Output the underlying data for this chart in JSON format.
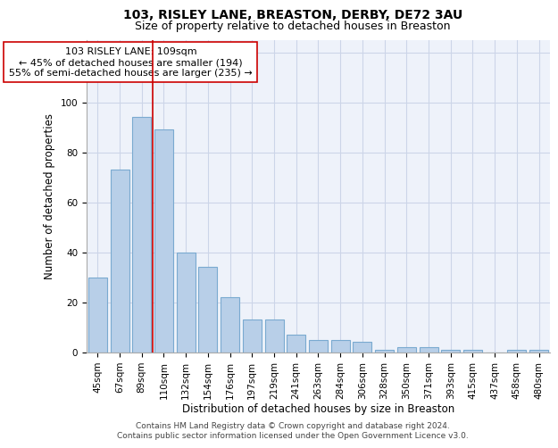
{
  "title": "103, RISLEY LANE, BREASTON, DERBY, DE72 3AU",
  "subtitle": "Size of property relative to detached houses in Breaston",
  "xlabel": "Distribution of detached houses by size in Breaston",
  "ylabel": "Number of detached properties",
  "categories": [
    "45sqm",
    "67sqm",
    "89sqm",
    "110sqm",
    "132sqm",
    "154sqm",
    "176sqm",
    "197sqm",
    "219sqm",
    "241sqm",
    "263sqm",
    "284sqm",
    "306sqm",
    "328sqm",
    "350sqm",
    "371sqm",
    "393sqm",
    "415sqm",
    "437sqm",
    "458sqm",
    "480sqm"
  ],
  "values": [
    30,
    73,
    94,
    89,
    40,
    34,
    22,
    13,
    13,
    7,
    5,
    5,
    4,
    1,
    2,
    2,
    1,
    1,
    0,
    1,
    1
  ],
  "bar_color": "#b8cfe8",
  "bar_edge_color": "#7aaad0",
  "vline_x_index": 2.5,
  "vline_color": "#cc0000",
  "annotation_text": "103 RISLEY LANE: 109sqm\n← 45% of detached houses are smaller (194)\n55% of semi-detached houses are larger (235) →",
  "annotation_box_color": "#ffffff",
  "annotation_box_edge_color": "#cc0000",
  "ylim": [
    0,
    125
  ],
  "yticks": [
    0,
    20,
    40,
    60,
    80,
    100,
    120
  ],
  "grid_color": "#ccd5e8",
  "background_color": "#eef2fa",
  "footer_text": "Contains HM Land Registry data © Crown copyright and database right 2024.\nContains public sector information licensed under the Open Government Licence v3.0.",
  "title_fontsize": 10,
  "subtitle_fontsize": 9,
  "xlabel_fontsize": 8.5,
  "ylabel_fontsize": 8.5,
  "tick_fontsize": 7.5,
  "annotation_fontsize": 8,
  "footer_fontsize": 6.5
}
